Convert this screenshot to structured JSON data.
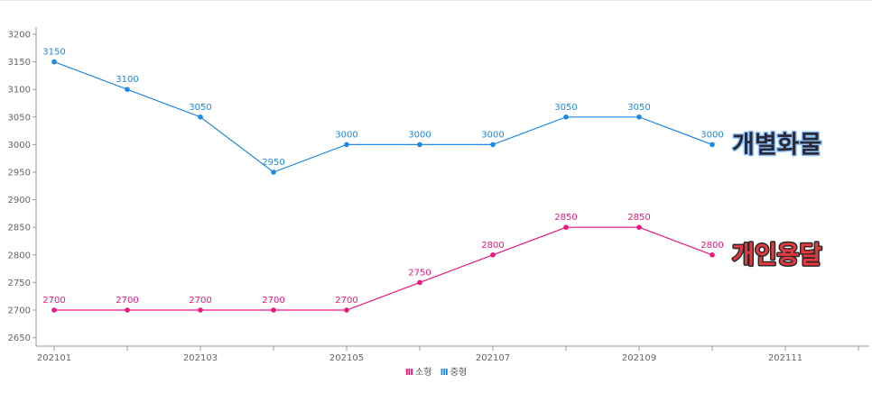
{
  "chart_data": {
    "type": "line",
    "x_ticks": [
      "202101",
      "202103",
      "202105",
      "202107",
      "202109",
      "202111"
    ],
    "categories": [
      "202101",
      "202102",
      "202103",
      "202104",
      "202105",
      "202106",
      "202107",
      "202108",
      "202109",
      "202110",
      "202111",
      "202112"
    ],
    "ylim": [
      2640,
      3210
    ],
    "y_ticks": [
      2650,
      2700,
      2750,
      2800,
      2850,
      2900,
      2950,
      3000,
      3050,
      3100,
      3150,
      3200
    ],
    "series": [
      {
        "name": "소형",
        "color": "#f0157e",
        "values": [
          2700,
          2700,
          2700,
          2700,
          2700,
          2750,
          2800,
          2850,
          2850,
          2800,
          null,
          null
        ]
      },
      {
        "name": "중형",
        "color": "#1e88e5",
        "values": [
          3150,
          3100,
          3050,
          2950,
          3000,
          3000,
          3000,
          3050,
          3050,
          3000,
          null,
          null
        ]
      }
    ],
    "annotations": [
      {
        "text": "개별화물",
        "series": 1,
        "fill": "#2a2a36",
        "stroke": "#8fc3ff"
      },
      {
        "text": "개인용달",
        "series": 0,
        "fill": "#e6393f",
        "stroke": "#2a2a2a"
      }
    ],
    "legend": {
      "position": "bottom-center",
      "marker": "III"
    },
    "grid": false
  }
}
